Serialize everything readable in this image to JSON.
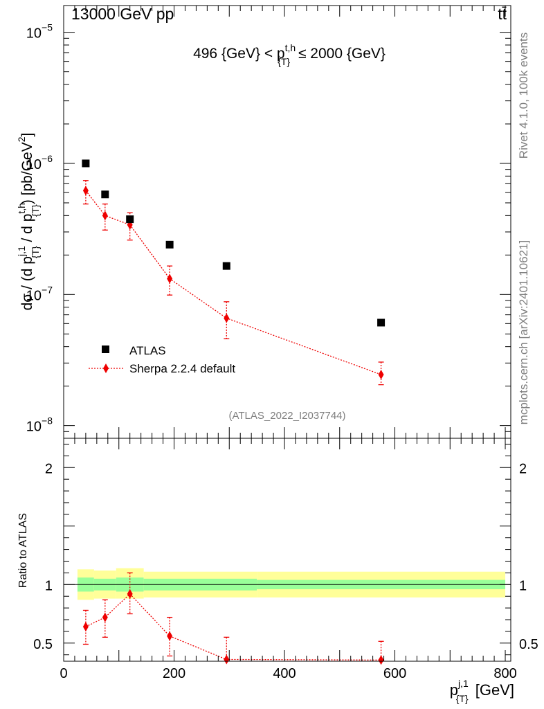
{
  "header": {
    "energy_label": "13000 GeV pp",
    "process_label": "tt̄",
    "rivet_label": "Rivet 4.1.0,  100k events",
    "mcplots_label": "mcplots.cern.ch [arXiv:2401.10621]",
    "analysis_label": "(ATLAS_2022_I2037744)"
  },
  "chart_data": [
    {
      "name": "main-panel",
      "type": "scatter",
      "title": "496 {GeV} < p_{T}^{t,h} ≤ 2000 {GeV}",
      "ylabel": "dσ / (d p_{T}^{j,1} / d p_{T}^{t,h}) [pb/GeV²]",
      "yscale": "log",
      "xlim": [
        0,
        810
      ],
      "ylim": [
        8e-09,
        1.6e-05
      ],
      "ytick_labels": [
        {
          "value": 1e-08,
          "base": "10",
          "exp": "−8"
        },
        {
          "value": 1e-07,
          "base": "10",
          "exp": "−7"
        },
        {
          "value": 1e-06,
          "base": "10",
          "exp": "−6"
        },
        {
          "value": 1e-05,
          "base": "10",
          "exp": "−5"
        }
      ],
      "legend_position": "lower-left",
      "series": [
        {
          "name": "ATLAS",
          "marker": "square",
          "color": "#000000",
          "x": [
            40,
            75,
            120,
            192,
            295,
            575
          ],
          "y": [
            1e-06,
            5.8e-07,
            3.75e-07,
            2.4e-07,
            1.65e-07,
            6.1e-08
          ]
        },
        {
          "name": "Sherpa 2.2.4 default",
          "marker": "diamond",
          "line": "dotted",
          "color": "#ee0000",
          "x": [
            40,
            75,
            120,
            192,
            295,
            575
          ],
          "y": [
            6.2e-07,
            4e-07,
            3.4e-07,
            1.32e-07,
            6.6e-08,
            2.45e-08
          ],
          "err_lo": [
            1.3e-07,
            9e-08,
            8e-08,
            3.3e-08,
            2e-08,
            4e-09
          ],
          "err_hi": [
            1.2e-07,
            9e-08,
            8e-08,
            3.3e-08,
            2.2e-08,
            6e-09
          ]
        }
      ]
    },
    {
      "name": "ratio-panel",
      "type": "line",
      "ylabel": "Ratio to ATLAS",
      "xlabel": "p_{T}^{j,1} [GeV]",
      "xlim": [
        0,
        810
      ],
      "ylim": [
        0.345,
        2.25
      ],
      "xticks": [
        0,
        200,
        400,
        600,
        800
      ],
      "yticks": [
        0.5,
        1,
        2
      ],
      "ytick_labels": [
        "0.5",
        "1",
        "2"
      ],
      "bands": [
        {
          "x0": 25,
          "x1": 55,
          "inner": [
            0.94,
            1.06
          ],
          "outer": [
            0.87,
            1.13
          ]
        },
        {
          "x0": 55,
          "x1": 95,
          "inner": [
            0.95,
            1.05
          ],
          "outer": [
            0.88,
            1.12
          ]
        },
        {
          "x0": 95,
          "x1": 145,
          "inner": [
            0.94,
            1.06
          ],
          "outer": [
            0.88,
            1.14
          ]
        },
        {
          "x0": 145,
          "x1": 350,
          "inner": [
            0.95,
            1.05
          ],
          "outer": [
            0.89,
            1.11
          ]
        },
        {
          "x0": 350,
          "x1": 800,
          "inner": [
            0.96,
            1.04
          ],
          "outer": [
            0.89,
            1.11
          ]
        }
      ],
      "band_colors": {
        "inner": "#99ff99",
        "outer": "#ffff99"
      },
      "ratio_series": {
        "name": "Sherpa 2.2.4 default",
        "x": [
          40,
          75,
          120,
          192,
          295,
          575
        ],
        "y": [
          0.64,
          0.72,
          0.92,
          0.56,
          0.36,
          0.355
        ],
        "err_lo": [
          0.15,
          0.17,
          0.17,
          0.17,
          0.15,
          0.15
        ],
        "err_hi": [
          0.14,
          0.15,
          0.18,
          0.16,
          0.19,
          0.16
        ]
      }
    }
  ]
}
